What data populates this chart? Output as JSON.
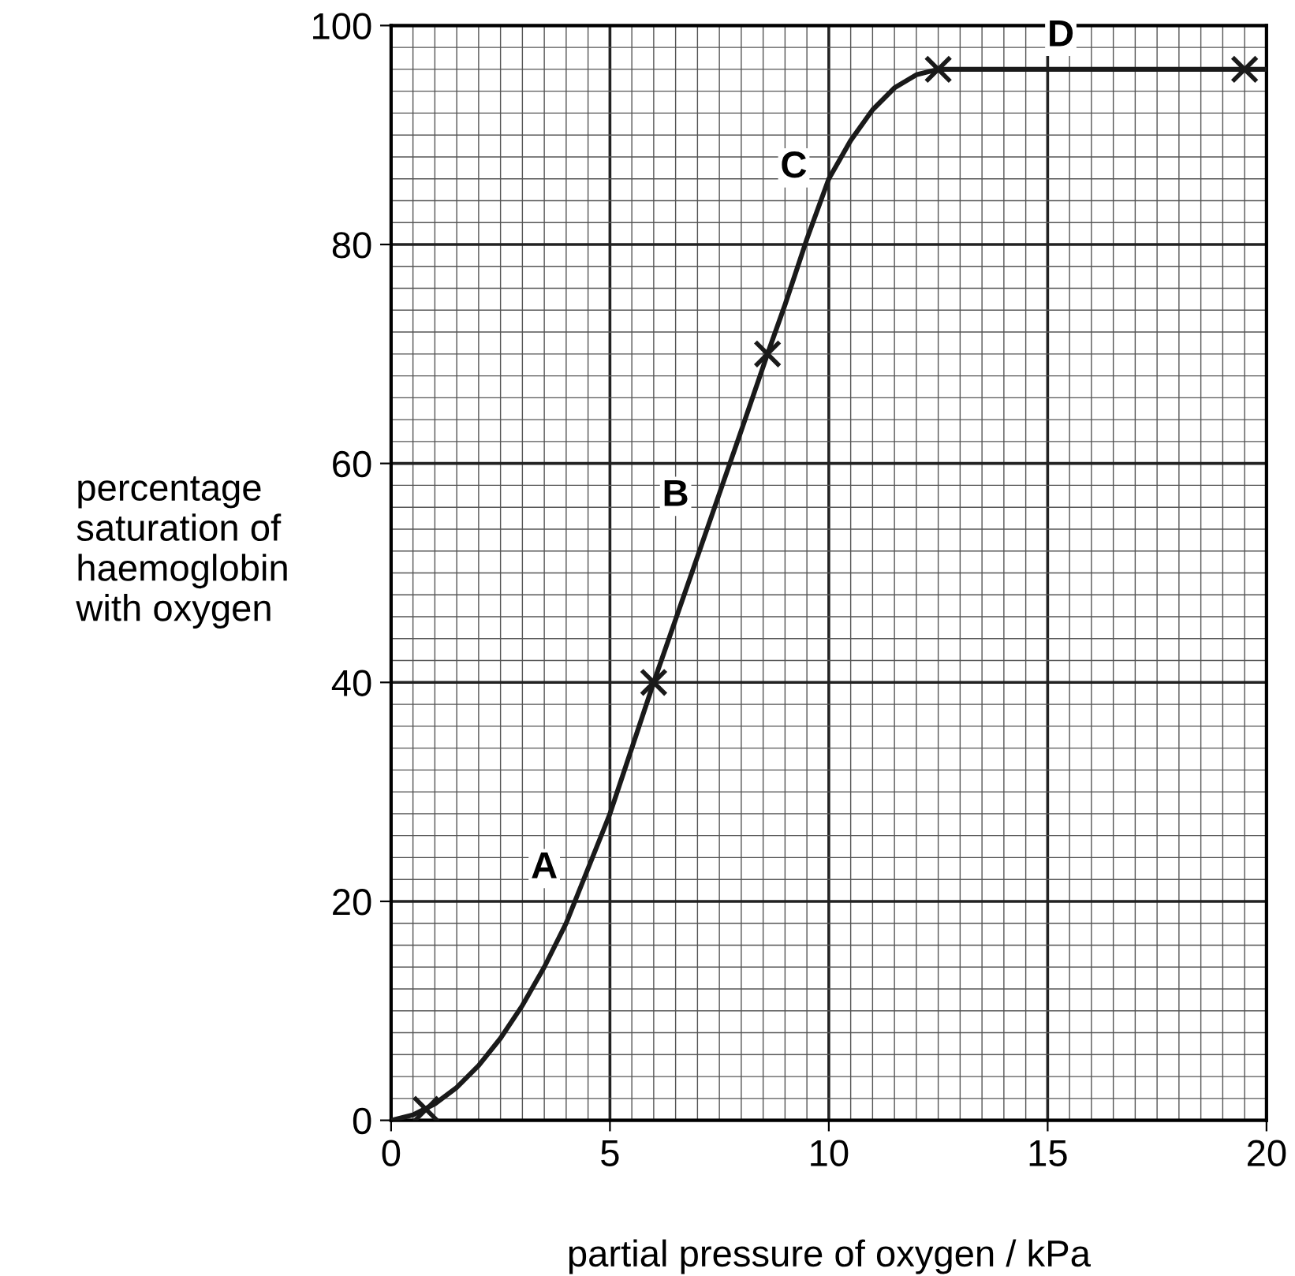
{
  "chart_data": {
    "type": "line",
    "xlabel": "partial pressure of oxygen / kPa",
    "ylabel": "percentage\nsaturation of\nhaemoglobin\nwith oxygen",
    "xlim": [
      0,
      20
    ],
    "ylim": [
      0,
      100
    ],
    "xticks": [
      0,
      5,
      10,
      15,
      20
    ],
    "yticks": [
      0,
      20,
      40,
      60,
      80,
      100
    ],
    "grid": true,
    "series": [
      {
        "color": "#1a1a1a",
        "x": [
          0,
          0.5,
          1,
          1.5,
          2,
          2.5,
          3,
          3.5,
          4,
          5,
          6,
          7,
          8,
          8.6,
          9,
          9.5,
          10,
          10.5,
          11,
          11.5,
          12,
          12.5,
          20
        ],
        "values": [
          0,
          0.5,
          1.5,
          3,
          5,
          7.5,
          10.5,
          14,
          18,
          28,
          40,
          51.5,
          63,
          70,
          74.5,
          80.5,
          86,
          89.5,
          92.3,
          94.3,
          95.5,
          96,
          96
        ]
      },
      {
        "type": "scatter",
        "marker": "cross",
        "color": "#1a1a1a",
        "x": [
          0.8,
          6,
          8.6,
          12.5,
          19.5
        ],
        "values": [
          1,
          40,
          70,
          96,
          96
        ]
      }
    ],
    "annotations": [
      {
        "text": "A",
        "x": 3.5,
        "y": 23
      },
      {
        "text": "B",
        "x": 6.5,
        "y": 57
      },
      {
        "text": "C",
        "x": 9.2,
        "y": 87
      },
      {
        "text": "D",
        "x": 15.3,
        "y": 99
      }
    ]
  }
}
